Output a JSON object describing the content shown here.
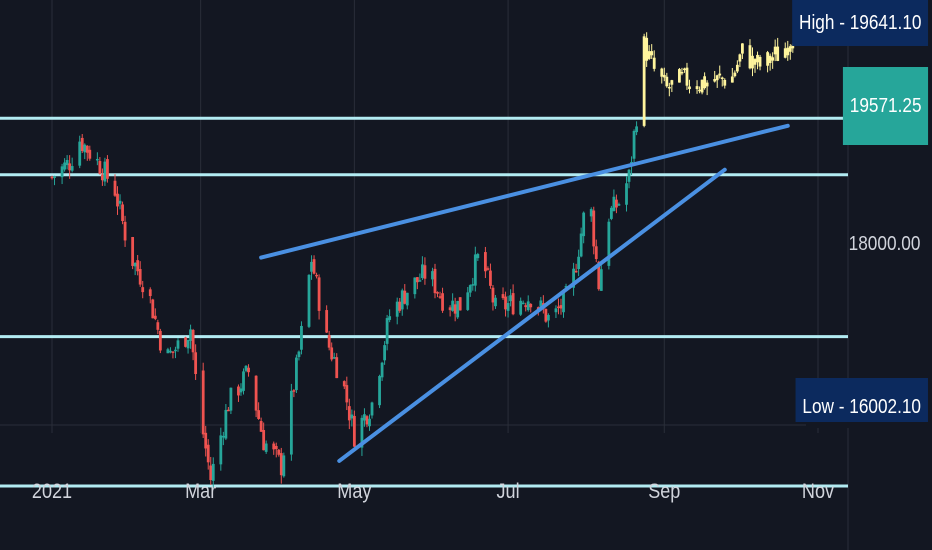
{
  "chart_data": {
    "type": "candlestick",
    "x_axis": {
      "tick_labels": [
        "2021",
        "Mar",
        "May",
        "Jul",
        "Sep",
        "Nov"
      ]
    },
    "y_axis": {
      "labeled_ticks": [
        18000.0
      ],
      "approx_range": [
        15900,
        19700
      ]
    },
    "price_labels": {
      "high": "High - 19641.10",
      "last": "19571.25",
      "mid": "18000.00",
      "low": "Low - 16002.10"
    },
    "horizontal_levels": [
      18970,
      18520,
      17230,
      16040
    ],
    "trendlines": [
      {
        "from": [
          "2021-03-25",
          17860
        ],
        "to": [
          "2021-10-20",
          18910
        ]
      },
      {
        "from": [
          "2021-04-25",
          16240
        ],
        "to": [
          "2021-09-25",
          18560
        ]
      }
    ],
    "series": [
      {
        "name": "",
        "color_up": "#26a69a",
        "color_down": "#ef5350",
        "period": "Jan-Aug"
      },
      {
        "name": "",
        "color": "#fff59d",
        "period": "Aug-Oct"
      }
    ],
    "ohlc_approx": [
      {
        "t": "Jan-01",
        "c": 18500
      },
      {
        "t": "Jan-08",
        "c": 18620
      },
      {
        "t": "Jan-12",
        "c": 18800
      },
      {
        "t": "Jan-20",
        "c": 18600
      },
      {
        "t": "Jan-26",
        "c": 18400
      },
      {
        "t": "Feb-01",
        "c": 17880
      },
      {
        "t": "Feb-08",
        "c": 17600
      },
      {
        "t": "Feb-15",
        "c": 17050
      },
      {
        "t": "Feb-22",
        "c": 17200
      },
      {
        "t": "Feb-25",
        "c": 17300
      },
      {
        "t": "Feb-28",
        "c": 16700
      },
      {
        "t": "Mar-05",
        "c": 16100
      },
      {
        "t": "Mar-12",
        "c": 16700
      },
      {
        "t": "Mar-20",
        "c": 16950
      },
      {
        "t": "Mar-26",
        "c": 16400
      },
      {
        "t": "Apr-02",
        "c": 16200
      },
      {
        "t": "Apr-09",
        "c": 17100
      },
      {
        "t": "Apr-14",
        "c": 17850
      },
      {
        "t": "Apr-20",
        "c": 17200
      },
      {
        "t": "Apr-26",
        "c": 16900
      },
      {
        "t": "May-01",
        "c": 16450
      },
      {
        "t": "May-08",
        "c": 16700
      },
      {
        "t": "May-15",
        "c": 17400
      },
      {
        "t": "May-22",
        "c": 17600
      },
      {
        "t": "May-30",
        "c": 17750
      },
      {
        "t": "Jun-06",
        "c": 17500
      },
      {
        "t": "Jun-12",
        "c": 17480
      },
      {
        "t": "Jun-20",
        "c": 17900
      },
      {
        "t": "Jun-26",
        "c": 17450
      },
      {
        "t": "Jul-03",
        "c": 17500
      },
      {
        "t": "Jul-10",
        "c": 17550
      },
      {
        "t": "Jul-18",
        "c": 17350
      },
      {
        "t": "Jul-26",
        "c": 17600
      },
      {
        "t": "Aug-02",
        "c": 18400
      },
      {
        "t": "Aug-06",
        "c": 17650
      },
      {
        "t": "Aug-10",
        "c": 18200
      },
      {
        "t": "Aug-14",
        "c": 18300
      },
      {
        "t": "Aug-18",
        "c": 18500
      },
      {
        "t": "Aug-21",
        "c": 19000
      },
      {
        "t": "Aug-24",
        "c": 19550
      },
      {
        "t": "Aug-28",
        "c": 19350
      },
      {
        "t": "Sep-02",
        "c": 19200
      },
      {
        "t": "Sep-08",
        "c": 19280
      },
      {
        "t": "Sep-15",
        "c": 19250
      },
      {
        "t": "Sep-22",
        "c": 19270
      },
      {
        "t": "Sep-28",
        "c": 19300
      },
      {
        "t": "Oct-02",
        "c": 19500
      },
      {
        "t": "Oct-06",
        "c": 19420
      },
      {
        "t": "Oct-10",
        "c": 19380
      },
      {
        "t": "Oct-14",
        "c": 19460
      },
      {
        "t": "Oct-18",
        "c": 19500
      },
      {
        "t": "Oct-22",
        "c": 19641
      }
    ]
  },
  "colors": {
    "background": "#131722",
    "up": "#26a69a",
    "down": "#ef5350",
    "recent": "#fff59d",
    "trendline": "#4a90e2",
    "level": "#b2ebf2",
    "axis_text": "#d1d4dc",
    "gridline": "#2a2e39",
    "tag_dark": "#0c2a5e",
    "tag_teal": "#26a69a"
  }
}
